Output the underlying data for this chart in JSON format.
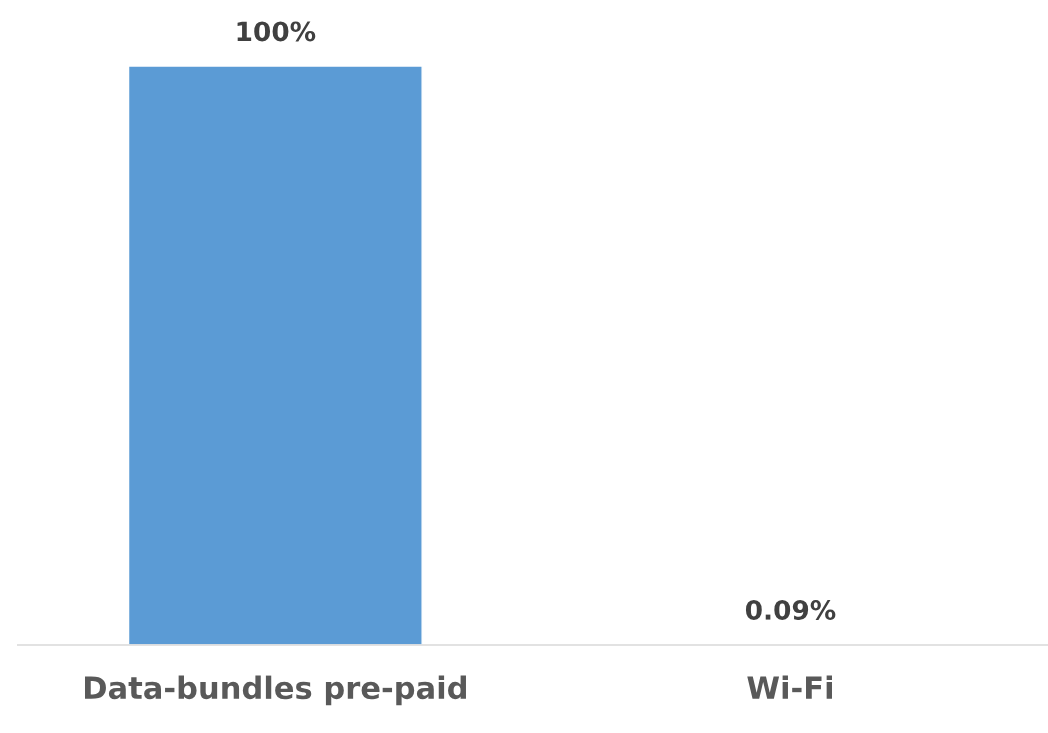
{
  "chart_data": {
    "type": "bar",
    "categories": [
      "Data-bundles pre-paid",
      "Wi-Fi"
    ],
    "values": [
      100,
      0.09
    ],
    "value_labels": [
      "100%",
      "0.09%"
    ],
    "color": "#5b9bd5",
    "grid": false,
    "legend": false
  }
}
